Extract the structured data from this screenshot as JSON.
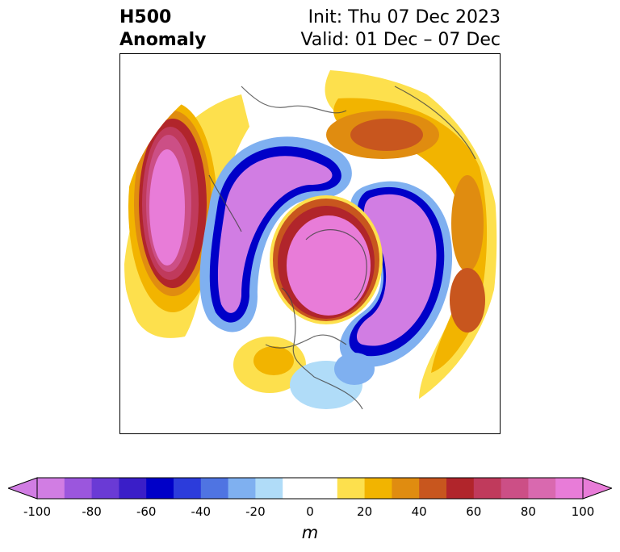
{
  "title": {
    "line1_left": "H500",
    "line2_left": "Anomaly",
    "line1_right": "Init: Thu 07 Dec 2023",
    "line2_right": "Valid: 01 Dec – 07 Dec"
  },
  "colorbar": {
    "unit": "m",
    "ticks": [
      "-100",
      "-80",
      "-60",
      "-40",
      "-20",
      "0",
      "20",
      "40",
      "60",
      "80",
      "100"
    ],
    "colors": [
      "#d17de3",
      "#9b56dd",
      "#6a3ad5",
      "#3a1ec8",
      "#0000c8",
      "#2c3cdb",
      "#4f74e2",
      "#7fb0f0",
      "#b0dcf8",
      "#ffffff",
      "#ffffff",
      "#fde04d",
      "#f2b400",
      "#e08c10",
      "#c8561e",
      "#b1252b",
      "#c03a5c",
      "#cc4f86",
      "#d969af",
      "#e87cd8"
    ],
    "min_color": "#d17de3",
    "max_color": "#e87cd8"
  }
}
